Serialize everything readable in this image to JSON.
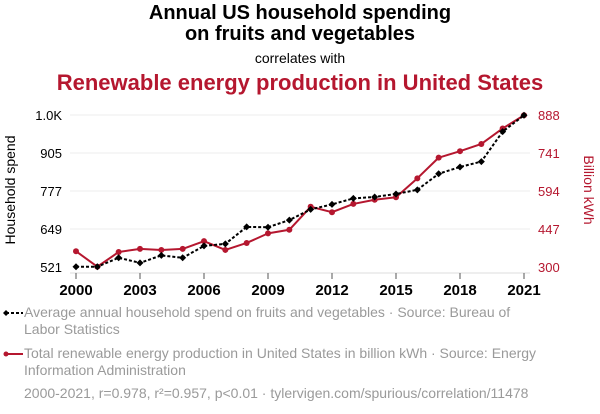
{
  "header": {
    "title_line1": "Annual US household spending",
    "title_line2": "on fruits and vegetables",
    "subtitle": "correlates with",
    "title_red": "Renewable energy production in United States"
  },
  "legend": {
    "series1": "Average annual household spend on fruits and vegetables · Source: Bureau of Labor Statistics",
    "series2": "Total renewable energy production in United States in billion kWh · Source: Energy Information Administration"
  },
  "footer": "2000-2021, r=0.978, r²=0.957, p<0.01 · tylervigen.com/spurious/correlation/11478",
  "colors": {
    "series1": "#000000",
    "series2": "#b5172f",
    "grid": "#eeeeee",
    "legend_text": "#9a9a9a"
  },
  "chart_data": {
    "type": "line",
    "title": "Annual US household spending on fruits and vegetables correlates with Renewable energy production in United States",
    "x": [
      2000,
      2001,
      2002,
      2003,
      2004,
      2005,
      2006,
      2007,
      2008,
      2009,
      2010,
      2011,
      2012,
      2013,
      2014,
      2015,
      2016,
      2017,
      2018,
      2019,
      2020,
      2021
    ],
    "xticks": [
      "2000",
      "2003",
      "2006",
      "2009",
      "2012",
      "2015",
      "2018",
      "2021"
    ],
    "xlim": [
      2000,
      2021
    ],
    "xlabel": "",
    "grid": true,
    "legend_position": "bottom",
    "y_left": {
      "label": "Household spend",
      "ticks": [
        "521",
        "649",
        "777",
        "905",
        "1.0K"
      ],
      "tick_values": [
        521,
        649,
        777,
        905,
        1033
      ],
      "ylim": [
        521,
        1033
      ]
    },
    "y_right": {
      "label": "Billion kWh",
      "ticks": [
        "300",
        "447",
        "594",
        "741",
        "888"
      ],
      "tick_values": [
        300,
        447,
        594,
        741,
        888
      ],
      "ylim": [
        300,
        888
      ]
    },
    "series": [
      {
        "name": "Average annual household spend on fruits and vegetables",
        "axis": "left",
        "style": "dashed",
        "marker": "diamond",
        "values": [
          522,
          522,
          552,
          535,
          560,
          552,
          592,
          599,
          656,
          655,
          679,
          715,
          732,
          752,
          757,
          767,
          781,
          835,
          858,
          876,
          977,
          1032
        ]
      },
      {
        "name": "Total renewable energy production in United States in billion kWh",
        "axis": "right",
        "style": "solid",
        "marker": "circle",
        "values": [
          361,
          301,
          358,
          370,
          366,
          370,
          400,
          366,
          393,
          430,
          444,
          533,
          512,
          544,
          560,
          570,
          643,
          723,
          748,
          776,
          836,
          887
        ]
      }
    ]
  }
}
